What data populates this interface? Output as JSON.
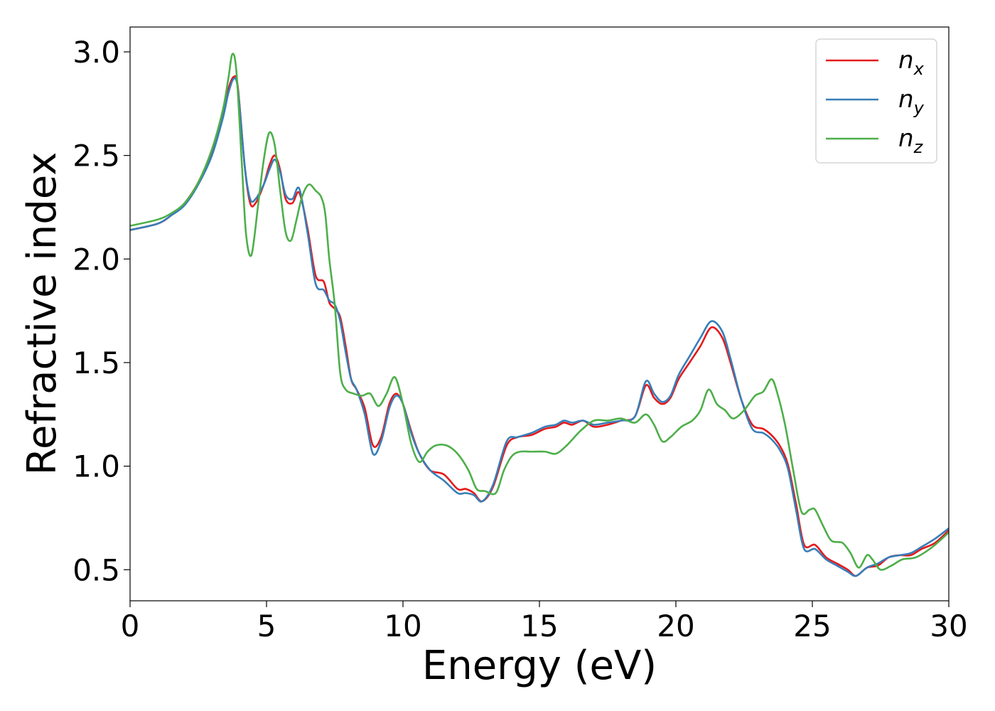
{
  "chart_data": {
    "type": "line",
    "xlabel": "Energy (eV)",
    "ylabel": "Refractive index",
    "xlim": [
      0,
      30
    ],
    "ylim": [
      0.35,
      3.12
    ],
    "xticks": [
      0,
      5,
      10,
      15,
      20,
      25,
      30
    ],
    "xtick_labels": [
      "0",
      "5",
      "10",
      "15",
      "20",
      "25",
      "30"
    ],
    "yticks": [
      0.5,
      1.0,
      1.5,
      2.0,
      2.5,
      3.0
    ],
    "ytick_labels": [
      "0.5",
      "1.0",
      "1.5",
      "2.0",
      "2.5",
      "3.0"
    ],
    "grid": false,
    "legend_position": "top-right",
    "series": [
      {
        "name": "n_x",
        "label_base": "n",
        "label_sub": "x",
        "color": "#e41a1c",
        "x": [
          0,
          1,
          1.5,
          2,
          2.5,
          3,
          3.4,
          3.6,
          3.8,
          3.95,
          4.2,
          4.4,
          4.6,
          4.9,
          5.1,
          5.3,
          5.5,
          5.7,
          5.95,
          6.2,
          6.5,
          6.8,
          7.1,
          7.3,
          7.5,
          7.7,
          7.9,
          8.1,
          8.3,
          8.6,
          8.9,
          9.2,
          9.5,
          9.75,
          10,
          10.3,
          10.6,
          11,
          11.5,
          12,
          12.3,
          12.6,
          12.9,
          13.3,
          13.8,
          14.2,
          14.7,
          15.2,
          15.6,
          15.9,
          16.2,
          16.6,
          17,
          17.5,
          18,
          18.5,
          18.9,
          19.2,
          19.5,
          19.8,
          20.1,
          20.5,
          20.9,
          21.3,
          21.7,
          22,
          22.4,
          22.8,
          23.2,
          23.5,
          23.8,
          24.1,
          24.4,
          24.7,
          25.1,
          25.5,
          25.9,
          26.3,
          26.6,
          27,
          27.4,
          27.8,
          28.2,
          28.6,
          29,
          29.5,
          30
        ],
        "y": [
          2.14,
          2.17,
          2.21,
          2.27,
          2.37,
          2.52,
          2.7,
          2.82,
          2.88,
          2.83,
          2.45,
          2.27,
          2.27,
          2.36,
          2.45,
          2.5,
          2.43,
          2.29,
          2.27,
          2.32,
          2.15,
          1.92,
          1.89,
          1.79,
          1.76,
          1.72,
          1.58,
          1.42,
          1.37,
          1.28,
          1.1,
          1.14,
          1.3,
          1.35,
          1.3,
          1.17,
          1.06,
          0.98,
          0.96,
          0.89,
          0.89,
          0.87,
          0.83,
          0.9,
          1.1,
          1.14,
          1.15,
          1.18,
          1.19,
          1.21,
          1.2,
          1.22,
          1.19,
          1.2,
          1.22,
          1.24,
          1.39,
          1.33,
          1.3,
          1.33,
          1.42,
          1.5,
          1.58,
          1.67,
          1.62,
          1.5,
          1.32,
          1.2,
          1.18,
          1.15,
          1.1,
          1.01,
          0.82,
          0.62,
          0.62,
          0.56,
          0.53,
          0.5,
          0.47,
          0.51,
          0.52,
          0.56,
          0.57,
          0.57,
          0.6,
          0.63,
          0.69
        ]
      },
      {
        "name": "n_y",
        "label_base": "n",
        "label_sub": "y",
        "color": "#377eb8",
        "x": [
          0,
          1,
          1.5,
          2,
          2.5,
          3,
          3.4,
          3.6,
          3.8,
          3.95,
          4.2,
          4.4,
          4.6,
          4.9,
          5.1,
          5.3,
          5.5,
          5.7,
          5.95,
          6.2,
          6.5,
          6.8,
          7.1,
          7.3,
          7.5,
          7.7,
          7.9,
          8.1,
          8.3,
          8.6,
          8.9,
          9.2,
          9.5,
          9.75,
          10,
          10.3,
          10.6,
          11,
          11.5,
          12,
          12.3,
          12.6,
          12.9,
          13.3,
          13.8,
          14.2,
          14.7,
          15.2,
          15.6,
          15.9,
          16.2,
          16.6,
          17,
          17.5,
          18,
          18.5,
          18.9,
          19.2,
          19.5,
          19.8,
          20.1,
          20.5,
          20.9,
          21.3,
          21.7,
          22,
          22.4,
          22.8,
          23.2,
          23.5,
          23.8,
          24.1,
          24.4,
          24.7,
          25.1,
          25.5,
          25.9,
          26.3,
          26.6,
          27,
          27.4,
          27.8,
          28.2,
          28.6,
          29,
          29.5,
          30
        ],
        "y": [
          2.14,
          2.17,
          2.21,
          2.26,
          2.36,
          2.5,
          2.68,
          2.8,
          2.87,
          2.82,
          2.45,
          2.29,
          2.29,
          2.36,
          2.43,
          2.48,
          2.42,
          2.31,
          2.29,
          2.34,
          2.13,
          1.88,
          1.85,
          1.8,
          1.78,
          1.7,
          1.55,
          1.42,
          1.37,
          1.25,
          1.06,
          1.12,
          1.28,
          1.34,
          1.3,
          1.16,
          1.06,
          0.98,
          0.93,
          0.87,
          0.87,
          0.86,
          0.83,
          0.91,
          1.12,
          1.14,
          1.16,
          1.19,
          1.2,
          1.22,
          1.21,
          1.22,
          1.2,
          1.21,
          1.22,
          1.24,
          1.41,
          1.35,
          1.31,
          1.34,
          1.44,
          1.53,
          1.62,
          1.7,
          1.65,
          1.52,
          1.32,
          1.18,
          1.16,
          1.13,
          1.08,
          0.99,
          0.79,
          0.6,
          0.6,
          0.55,
          0.52,
          0.49,
          0.47,
          0.51,
          0.53,
          0.56,
          0.57,
          0.58,
          0.61,
          0.65,
          0.7
        ]
      },
      {
        "name": "n_z",
        "label_base": "n",
        "label_sub": "z",
        "color": "#4daf4a",
        "x": [
          0,
          1,
          1.5,
          2,
          2.5,
          3,
          3.4,
          3.6,
          3.75,
          3.9,
          4.1,
          4.25,
          4.45,
          4.7,
          4.9,
          5.1,
          5.3,
          5.5,
          5.7,
          5.9,
          6.1,
          6.3,
          6.55,
          6.8,
          7,
          7.15,
          7.3,
          7.5,
          7.7,
          7.9,
          8.2,
          8.5,
          8.8,
          9.1,
          9.4,
          9.7,
          10,
          10.3,
          10.6,
          10.9,
          11.2,
          11.6,
          12,
          12.4,
          12.7,
          13,
          13.4,
          13.7,
          14,
          14.3,
          14.7,
          15.2,
          15.6,
          16,
          16.5,
          17,
          17.5,
          18,
          18.5,
          18.9,
          19.2,
          19.5,
          19.8,
          20.2,
          20.6,
          20.9,
          21.2,
          21.5,
          21.8,
          22.1,
          22.5,
          22.9,
          23.2,
          23.5,
          23.7,
          24,
          24.3,
          24.6,
          24.9,
          25.1,
          25.4,
          25.7,
          26.1,
          26.4,
          26.7,
          27,
          27.2,
          27.5,
          27.9,
          28.3,
          28.8,
          29.4,
          30
        ],
        "y": [
          2.16,
          2.19,
          2.22,
          2.27,
          2.37,
          2.53,
          2.72,
          2.87,
          2.99,
          2.9,
          2.45,
          2.12,
          2.02,
          2.27,
          2.48,
          2.61,
          2.55,
          2.33,
          2.13,
          2.09,
          2.19,
          2.3,
          2.36,
          2.33,
          2.3,
          2.22,
          2.0,
          1.78,
          1.45,
          1.37,
          1.35,
          1.34,
          1.35,
          1.29,
          1.35,
          1.43,
          1.3,
          1.11,
          1.02,
          1.07,
          1.1,
          1.1,
          1.06,
          0.98,
          0.89,
          0.88,
          0.87,
          0.98,
          1.05,
          1.07,
          1.07,
          1.07,
          1.06,
          1.1,
          1.17,
          1.22,
          1.22,
          1.23,
          1.21,
          1.25,
          1.2,
          1.12,
          1.14,
          1.19,
          1.22,
          1.27,
          1.37,
          1.3,
          1.27,
          1.23,
          1.27,
          1.34,
          1.36,
          1.42,
          1.36,
          1.2,
          0.98,
          0.78,
          0.79,
          0.79,
          0.71,
          0.64,
          0.63,
          0.58,
          0.51,
          0.57,
          0.55,
          0.5,
          0.52,
          0.55,
          0.56,
          0.61,
          0.68
        ]
      }
    ]
  }
}
